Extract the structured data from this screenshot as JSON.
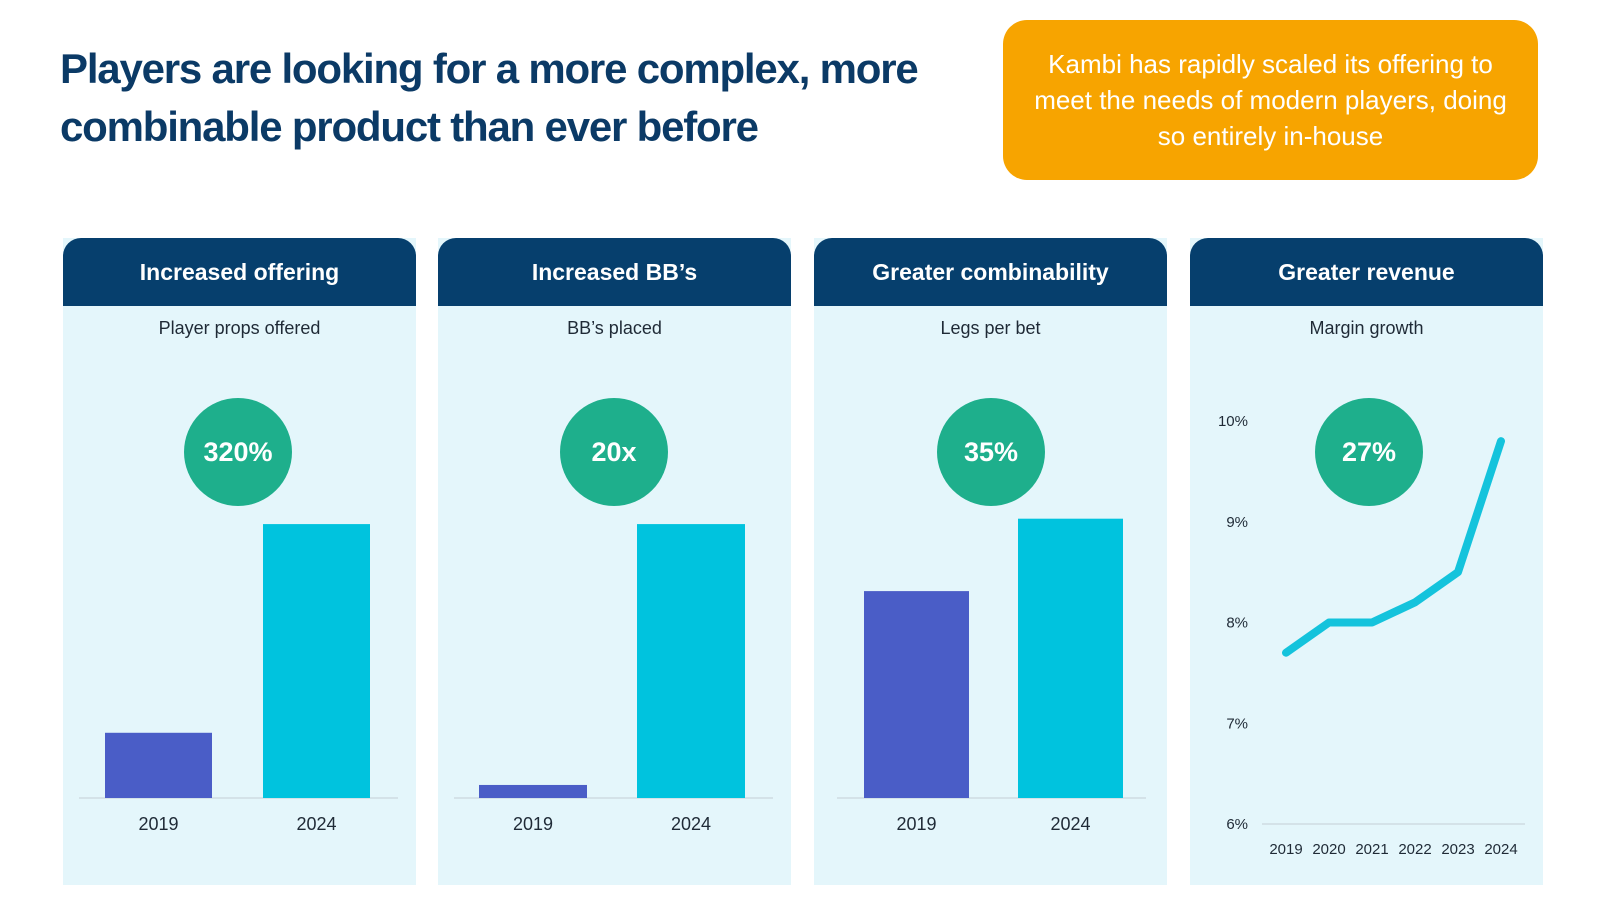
{
  "title": "Players are looking for a more complex, more combinable product than ever before",
  "callout": "Kambi has rapidly scaled its offering to meet the needs of modern players, doing so entirely in-house",
  "colors": {
    "title": "#0b3a66",
    "callout_bg": "#f7a400",
    "panel_header": "#063f6d",
    "panel_bg": "#e4f6fb",
    "badge": "#1eaf8c",
    "bar_2019": "#4a5dc7",
    "bar_2024": "#00c3de",
    "line": "#14c3dc"
  },
  "panels": [
    {
      "header": "Increased offering",
      "subtitle": "Player props offered",
      "badge": "320%"
    },
    {
      "header": "Increased BB’s",
      "subtitle": "BB’s placed",
      "badge": "20x"
    },
    {
      "header": "Greater combinability",
      "subtitle": "Legs per bet",
      "badge": "35%"
    },
    {
      "header": "Greater revenue",
      "subtitle": "Margin growth",
      "badge": "27%"
    }
  ],
  "chart_data": [
    {
      "type": "bar",
      "title": "Player props offered",
      "categories": [
        "2019",
        "2024"
      ],
      "values": [
        1,
        4.2
      ],
      "ylim": [
        0,
        4.6
      ],
      "grid": false
    },
    {
      "type": "bar",
      "title": "BB’s placed",
      "categories": [
        "2019",
        "2024"
      ],
      "values": [
        1,
        21
      ],
      "ylim": [
        0,
        23
      ],
      "grid": false
    },
    {
      "type": "bar",
      "title": "Legs per bet",
      "categories": [
        "2019",
        "2024"
      ],
      "values": [
        1,
        1.35
      ],
      "ylim": [
        0,
        1.45
      ],
      "grid": false
    },
    {
      "type": "line",
      "title": "Margin growth",
      "x": [
        "2019",
        "2020",
        "2021",
        "2022",
        "2023",
        "2024"
      ],
      "y": [
        7.7,
        8.0,
        8.0,
        8.2,
        8.5,
        9.8
      ],
      "ylim": [
        6,
        10
      ],
      "yticks": [
        "6%",
        "7%",
        "8%",
        "9%",
        "10%"
      ],
      "ytick_values": [
        6,
        7,
        8,
        9,
        10
      ],
      "grid": false
    }
  ]
}
